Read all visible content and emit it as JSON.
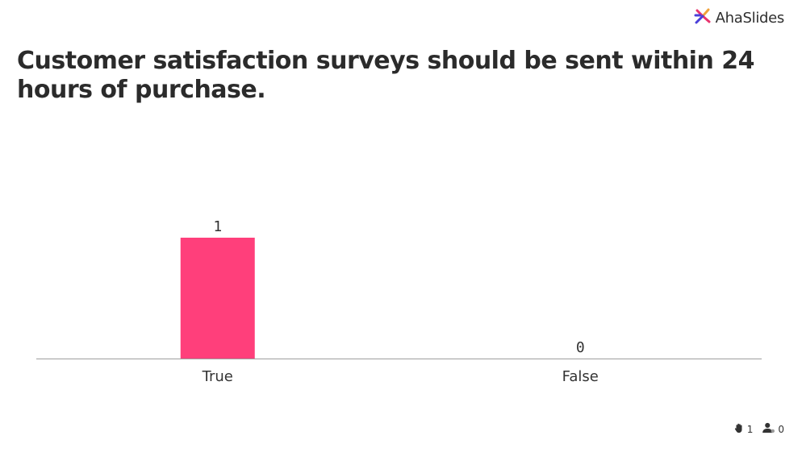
{
  "brand": {
    "name": "AhaSlides",
    "logo_icon": "ahaslides-logo-icon",
    "logo_colors": [
      "#e8336e",
      "#4a3fd9",
      "#f0a23a"
    ]
  },
  "question": {
    "title": "Customer satisfaction surveys should be sent within 24 hours of purchase."
  },
  "chart_data": {
    "type": "bar",
    "categories": [
      "True",
      "False"
    ],
    "values": [
      1,
      0
    ],
    "value_labels": [
      "1",
      "0"
    ],
    "ylim": [
      0,
      1
    ],
    "bar_color": "#ff3f7b",
    "grid": false
  },
  "footer": {
    "reactions_icon": "hand-icon",
    "reactions_count": "1",
    "participants_icon": "user-icon",
    "participants_count": "0"
  }
}
